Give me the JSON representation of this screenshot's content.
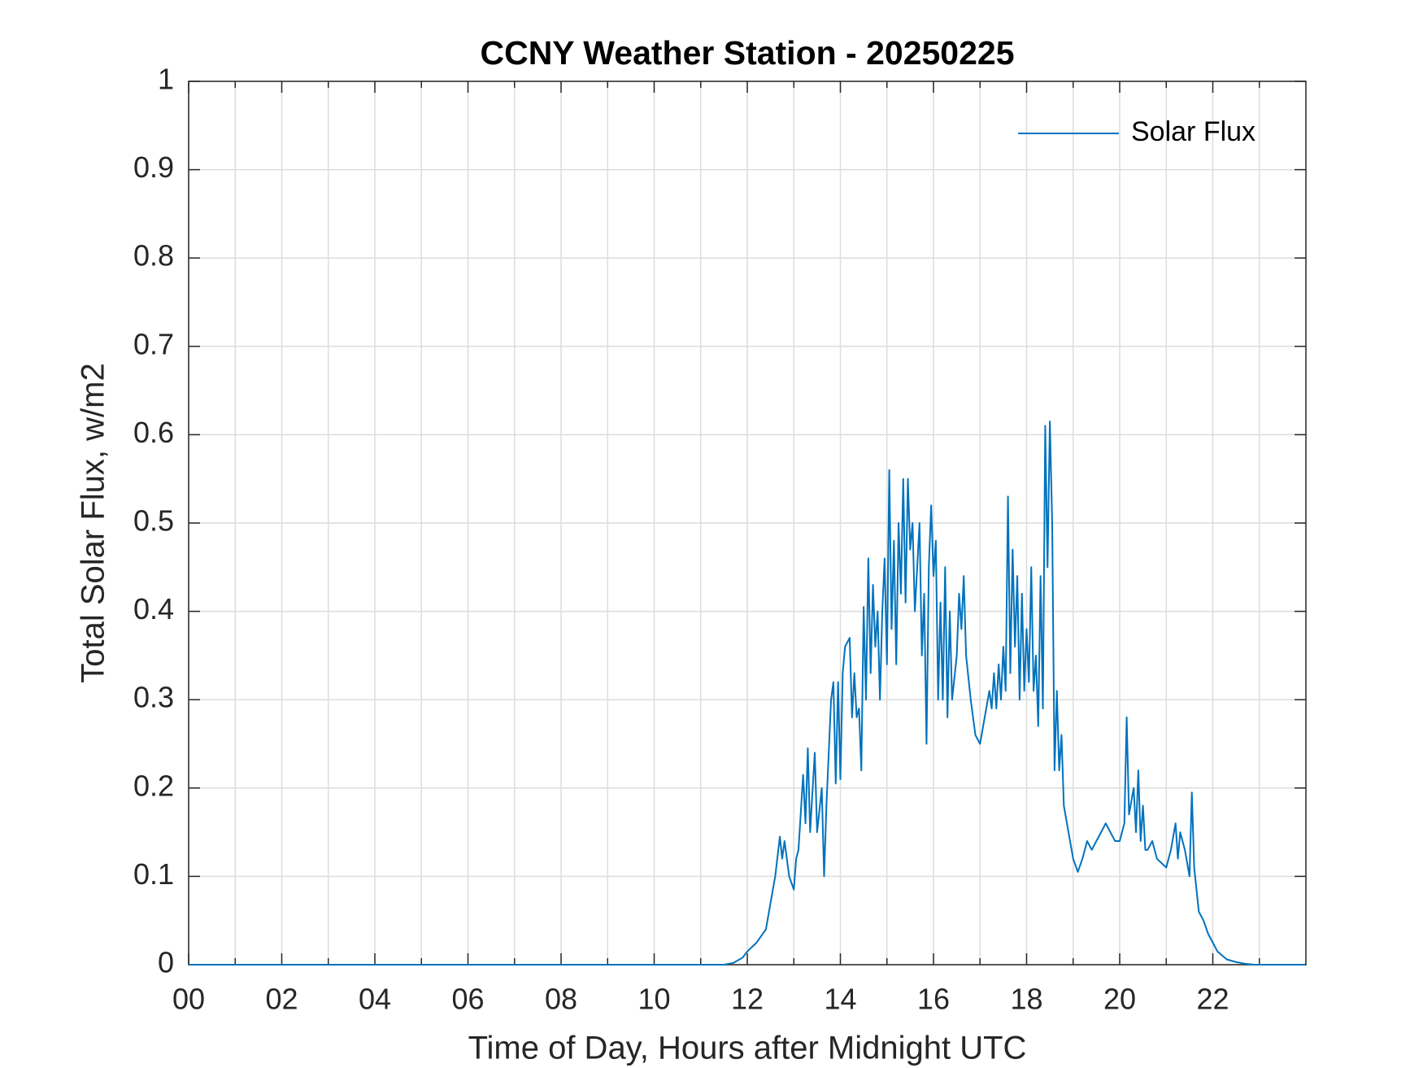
{
  "chart_data": {
    "type": "line",
    "title": "CCNY Weather Station - 20250225",
    "x_label": "Time of Day, Hours after Midnight UTC",
    "y_label": "Total Solar Flux, w/m2",
    "xlim": [
      0,
      24
    ],
    "ylim": [
      0,
      1
    ],
    "xticks": [
      {
        "value": 0,
        "label": "00"
      },
      {
        "value": 2,
        "label": "02"
      },
      {
        "value": 4,
        "label": "04"
      },
      {
        "value": 6,
        "label": "06"
      },
      {
        "value": 8,
        "label": "08"
      },
      {
        "value": 10,
        "label": "10"
      },
      {
        "value": 12,
        "label": "12"
      },
      {
        "value": 14,
        "label": "14"
      },
      {
        "value": 16,
        "label": "16"
      },
      {
        "value": 18,
        "label": "18"
      },
      {
        "value": 20,
        "label": "20"
      },
      {
        "value": 22,
        "label": "22"
      }
    ],
    "xminorticks": [
      1,
      3,
      5,
      7,
      9,
      11,
      13,
      15,
      17,
      19,
      21,
      23
    ],
    "yticks": [
      0,
      0.1,
      0.2,
      0.3,
      0.4,
      0.5,
      0.6,
      0.7,
      0.8,
      0.9,
      1
    ],
    "grid": true,
    "legend": "northeast",
    "x": [
      0,
      11.5,
      11.7,
      11.9,
      12.0,
      12.2,
      12.4,
      12.5,
      12.6,
      12.7,
      12.75,
      12.8,
      12.9,
      13.0,
      13.05,
      13.1,
      13.2,
      13.25,
      13.3,
      13.35,
      13.45,
      13.5,
      13.6,
      13.65,
      13.7,
      13.8,
      13.85,
      13.9,
      13.95,
      14.0,
      14.05,
      14.1,
      14.2,
      14.25,
      14.3,
      14.35,
      14.4,
      14.45,
      14.5,
      14.55,
      14.6,
      14.65,
      14.7,
      14.75,
      14.8,
      14.85,
      14.9,
      14.95,
      15.0,
      15.05,
      15.1,
      15.15,
      15.2,
      15.25,
      15.3,
      15.35,
      15.4,
      15.45,
      15.5,
      15.55,
      15.6,
      15.7,
      15.75,
      15.8,
      15.85,
      15.9,
      15.95,
      16.0,
      16.05,
      16.1,
      16.15,
      16.2,
      16.25,
      16.3,
      16.35,
      16.4,
      16.5,
      16.55,
      16.6,
      16.65,
      16.7,
      16.8,
      16.9,
      17.0,
      17.1,
      17.2,
      17.25,
      17.3,
      17.35,
      17.4,
      17.45,
      17.5,
      17.55,
      17.6,
      17.65,
      17.7,
      17.75,
      17.8,
      17.85,
      17.9,
      17.95,
      18.0,
      18.05,
      18.1,
      18.15,
      18.2,
      18.25,
      18.3,
      18.35,
      18.4,
      18.45,
      18.5,
      18.55,
      18.6,
      18.65,
      18.7,
      18.75,
      18.8,
      18.9,
      19.0,
      19.1,
      19.2,
      19.3,
      19.4,
      19.5,
      19.6,
      19.7,
      19.8,
      19.9,
      20.0,
      20.1,
      20.15,
      20.2,
      20.3,
      20.35,
      20.4,
      20.45,
      20.5,
      20.55,
      20.6,
      20.7,
      20.8,
      20.9,
      21.0,
      21.1,
      21.2,
      21.25,
      21.3,
      21.4,
      21.5,
      21.55,
      21.6,
      21.7,
      21.8,
      21.9,
      22.0,
      22.1,
      22.3,
      22.5,
      22.7,
      22.9,
      23.98
    ],
    "series": [
      {
        "name": "Solar Flux",
        "color": "#0072bd",
        "values": [
          0,
          0,
          0.002,
          0.008,
          0.015,
          0.025,
          0.04,
          0.07,
          0.1,
          0.145,
          0.12,
          0.14,
          0.1,
          0.085,
          0.12,
          0.13,
          0.215,
          0.16,
          0.245,
          0.15,
          0.24,
          0.15,
          0.2,
          0.1,
          0.18,
          0.3,
          0.32,
          0.205,
          0.32,
          0.21,
          0.33,
          0.36,
          0.37,
          0.28,
          0.33,
          0.28,
          0.29,
          0.22,
          0.405,
          0.3,
          0.46,
          0.33,
          0.43,
          0.36,
          0.4,
          0.3,
          0.4,
          0.46,
          0.34,
          0.56,
          0.38,
          0.48,
          0.34,
          0.5,
          0.42,
          0.55,
          0.41,
          0.55,
          0.47,
          0.5,
          0.4,
          0.5,
          0.35,
          0.42,
          0.25,
          0.45,
          0.52,
          0.44,
          0.48,
          0.3,
          0.41,
          0.3,
          0.45,
          0.28,
          0.4,
          0.3,
          0.35,
          0.42,
          0.38,
          0.44,
          0.35,
          0.3,
          0.26,
          0.25,
          0.28,
          0.31,
          0.29,
          0.33,
          0.29,
          0.34,
          0.3,
          0.36,
          0.31,
          0.53,
          0.33,
          0.47,
          0.36,
          0.44,
          0.3,
          0.42,
          0.31,
          0.38,
          0.32,
          0.45,
          0.31,
          0.35,
          0.27,
          0.44,
          0.29,
          0.61,
          0.45,
          0.615,
          0.5,
          0.22,
          0.31,
          0.22,
          0.26,
          0.18,
          0.15,
          0.12,
          0.105,
          0.12,
          0.14,
          0.13,
          0.14,
          0.15,
          0.16,
          0.15,
          0.14,
          0.14,
          0.16,
          0.28,
          0.17,
          0.2,
          0.15,
          0.22,
          0.14,
          0.18,
          0.13,
          0.13,
          0.14,
          0.12,
          0.115,
          0.11,
          0.13,
          0.16,
          0.12,
          0.15,
          0.13,
          0.1,
          0.195,
          0.11,
          0.06,
          0.05,
          0.035,
          0.025,
          0.015,
          0.006,
          0.003,
          0.001,
          0,
          0
        ]
      }
    ]
  }
}
